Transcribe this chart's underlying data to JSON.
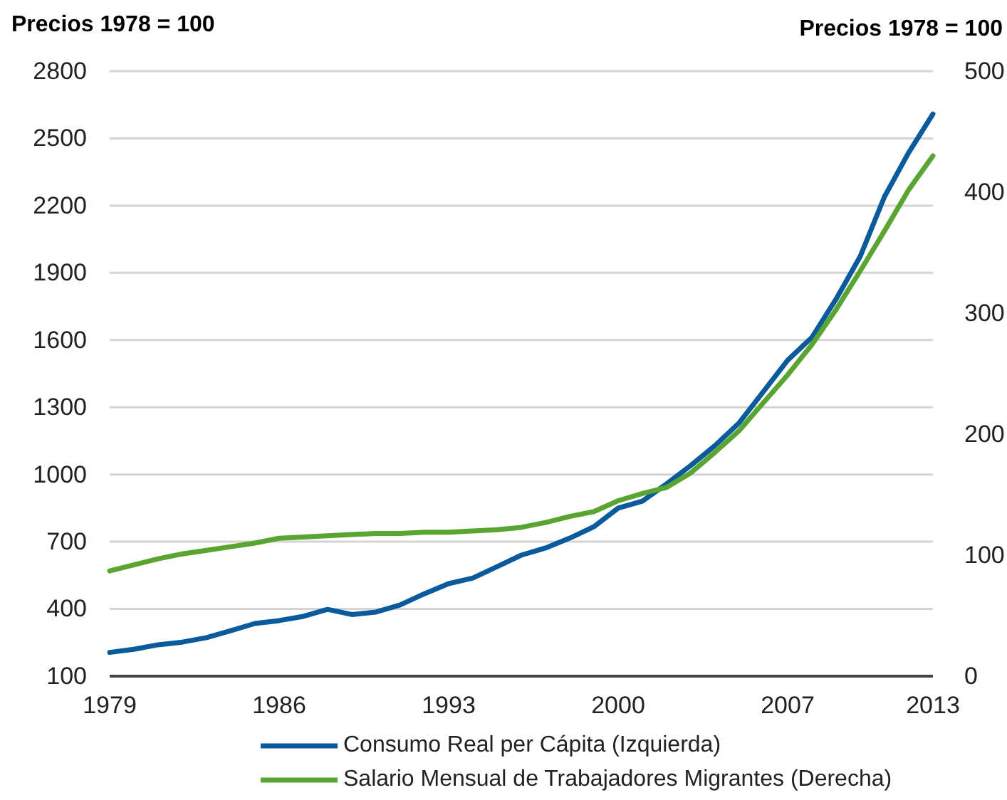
{
  "chart_data": {
    "type": "line",
    "ylabel": "Precios 1978 = 100",
    "y2label": "Precios 1978 = 100",
    "x": [
      1979,
      1980,
      1981,
      1982,
      1983,
      1984,
      1985,
      1986,
      1987,
      1988,
      1989,
      1990,
      1991,
      1992,
      1993,
      1994,
      1995,
      1996,
      1997,
      1998,
      1999,
      2000,
      2001,
      2002,
      2003,
      2004,
      2005,
      2006,
      2007,
      2008,
      2009,
      2010,
      2011,
      2012,
      2013
    ],
    "series": [
      {
        "name": "Consumo Real per Cápita (Izquierda)",
        "color": "#0a5a9c",
        "values": [
          206,
          220,
          240,
          252,
          272,
          303,
          335,
          348,
          367,
          398,
          375,
          386,
          418,
          468,
          513,
          538,
          589,
          640,
          672,
          716,
          767,
          850,
          881,
          958,
          1040,
          1129,
          1231,
          1370,
          1510,
          1612,
          1783,
          1974,
          2240,
          2437,
          2609
        ]
      },
      {
        "name": "Salario Mensual de Trabajadores Migrantes (Derecha)",
        "color": "#5aa532",
        "axis": "y2",
        "values": [
          87,
          92,
          97,
          101,
          104,
          107,
          110,
          114,
          115,
          116,
          117,
          118,
          118,
          119,
          119,
          120,
          121,
          123,
          127,
          132,
          136,
          145,
          151,
          156,
          168,
          185,
          203,
          226,
          249,
          274,
          303,
          335,
          368,
          402,
          430
        ]
      }
    ],
    "xlim": [
      1979,
      2013
    ],
    "xticks": [
      1979,
      1986,
      1993,
      2000,
      2007,
      2013
    ],
    "ylim": [
      100,
      2800
    ],
    "yticks": [
      100,
      400,
      700,
      1000,
      1300,
      1600,
      1900,
      2200,
      2500,
      2800
    ],
    "y2lim": [
      0,
      500
    ],
    "y2ticks": [
      0,
      100,
      200,
      300,
      400,
      500
    ],
    "grid": "y",
    "legend": "bottom",
    "line_style": "solid",
    "marker": "none"
  }
}
